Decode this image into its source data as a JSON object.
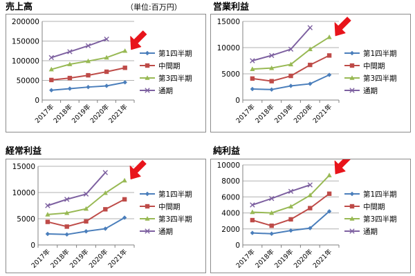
{
  "header": {
    "unit_label": "（単位:百万円）"
  },
  "colors": {
    "q1": "#4a7ebb",
    "mid": "#be4b48",
    "q3": "#98b954",
    "full": "#7d60a0",
    "arrow": "#e8141b",
    "grid": "#b0b0b0",
    "axis": "#808080"
  },
  "chart_data": [
    {
      "title": "売上高",
      "type": "line",
      "categories": [
        "2017年",
        "2018年",
        "2019年",
        "2020年",
        "2021年"
      ],
      "ylim": [
        0,
        200000
      ],
      "yticks": [
        "0",
        "50000",
        "100000",
        "150000",
        "200000"
      ],
      "grid": true,
      "legend_position": "right",
      "series": [
        {
          "name": "第1四半期",
          "values": [
            25000,
            29000,
            33000,
            36000,
            45000
          ]
        },
        {
          "name": "中間期",
          "values": [
            51000,
            56000,
            63000,
            72000,
            82000
          ]
        },
        {
          "name": "第3四半期",
          "values": [
            78000,
            91000,
            99000,
            108000,
            125000
          ]
        },
        {
          "name": "通期",
          "values": [
            108000,
            123000,
            138000,
            155000,
            null
          ]
        }
      ]
    },
    {
      "title": "営業利益",
      "type": "line",
      "categories": [
        "2017年",
        "2018年",
        "2019年",
        "2020年",
        "2021年"
      ],
      "ylim": [
        0,
        15000
      ],
      "yticks": [
        "0",
        "5000",
        "10000",
        "15000"
      ],
      "grid": true,
      "legend_position": "right",
      "series": [
        {
          "name": "第1四半期",
          "values": [
            2100,
            2000,
            2700,
            3100,
            4800
          ]
        },
        {
          "name": "中間期",
          "values": [
            4100,
            3600,
            4600,
            6700,
            8500
          ]
        },
        {
          "name": "第3四半期",
          "values": [
            5900,
            6100,
            6800,
            9700,
            12000
          ]
        },
        {
          "name": "通期",
          "values": [
            7500,
            8500,
            9700,
            13800,
            null
          ]
        }
      ]
    },
    {
      "title": "経常利益",
      "type": "line",
      "categories": [
        "2017年",
        "2018年",
        "2019年",
        "2020年",
        "2021年"
      ],
      "ylim": [
        0,
        15000
      ],
      "yticks": [
        "0",
        "5000",
        "10000",
        "15000"
      ],
      "grid": true,
      "legend_position": "right",
      "series": [
        {
          "name": "第1四半期",
          "values": [
            2100,
            2000,
            2600,
            3100,
            5200
          ]
        },
        {
          "name": "中間期",
          "values": [
            4400,
            3500,
            4500,
            6800,
            8700
          ]
        },
        {
          "name": "第3四半期",
          "values": [
            5800,
            6100,
            6900,
            9900,
            12300
          ]
        },
        {
          "name": "通期",
          "values": [
            7500,
            8700,
            9700,
            13800,
            null
          ]
        }
      ]
    },
    {
      "title": "純利益",
      "type": "line",
      "categories": [
        "2017年",
        "2018年",
        "2019年",
        "2020年",
        "2021年"
      ],
      "ylim": [
        0,
        10000
      ],
      "yticks": [
        "0",
        "2000",
        "4000",
        "6000",
        "8000",
        "10000"
      ],
      "grid": true,
      "legend_position": "right",
      "series": [
        {
          "name": "第1四半期",
          "values": [
            1500,
            1400,
            1800,
            2100,
            4200
          ]
        },
        {
          "name": "中間期",
          "values": [
            3100,
            2400,
            3200,
            4600,
            6400
          ]
        },
        {
          "name": "第3四半期",
          "values": [
            4100,
            4000,
            4800,
            6200,
            8700
          ]
        },
        {
          "name": "通期",
          "values": [
            5000,
            5800,
            6700,
            7500,
            null
          ]
        }
      ]
    }
  ]
}
